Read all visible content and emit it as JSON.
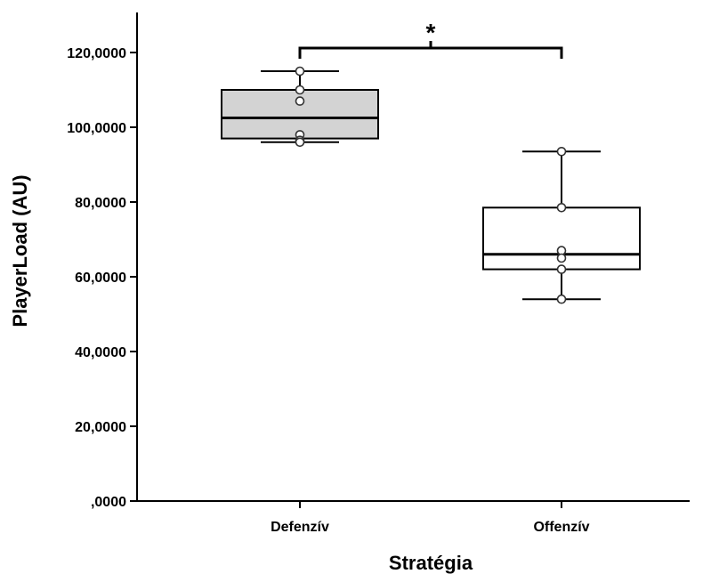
{
  "chart_data": {
    "type": "boxplot",
    "xlabel": "Stratégia",
    "ylabel": "PlayerLoad (AU)",
    "ylim": [
      0,
      130000
    ],
    "yticks": [
      0,
      20000,
      40000,
      60000,
      80000,
      100000,
      120000
    ],
    "ytick_labels": [
      ",0000",
      "20,0000",
      "40,0000",
      "60,0000",
      "80,0000",
      "100,0000",
      "120,0000"
    ],
    "categories": [
      "Defenzív",
      "Offenzív"
    ],
    "boxes": [
      {
        "category": "Defenzív",
        "fill": "#d3d3d3",
        "whisker_low": 96000,
        "q1": 97000,
        "median": 102500,
        "q3": 110000,
        "whisker_high": 115000,
        "points": [
          115000,
          110000,
          107000,
          98000,
          96500,
          96000
        ]
      },
      {
        "category": "Offenzív",
        "fill": "#ffffff",
        "whisker_low": 54000,
        "q1": 62000,
        "median": 66000,
        "q3": 78500,
        "whisker_high": 93500,
        "points": [
          93500,
          78500,
          67000,
          65000,
          62000,
          54000
        ]
      }
    ],
    "significance": {
      "label": "*",
      "between": [
        "Defenzív",
        "Offenzív"
      ],
      "y": 122000
    },
    "grid": false,
    "legend": "none"
  }
}
